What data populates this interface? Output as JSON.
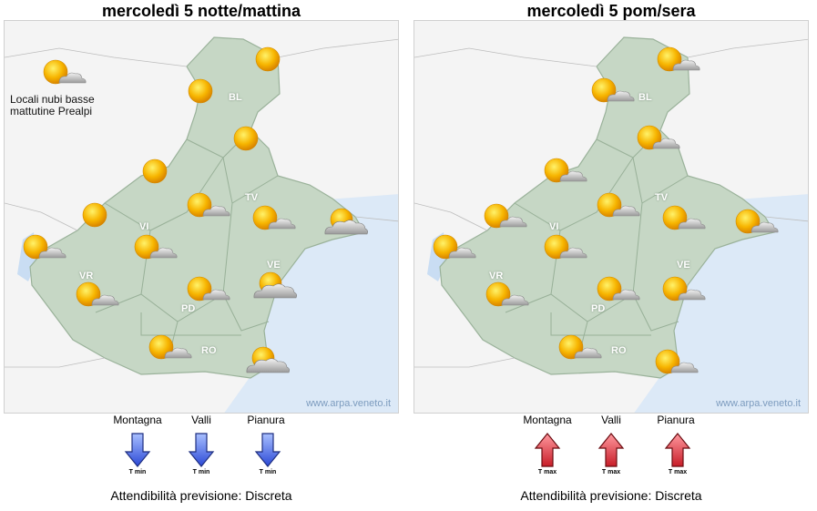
{
  "panels": [
    {
      "title": "mercoledì  5 notte/mattina",
      "note": [
        "Locali nubi basse",
        "mattutine Prealpi"
      ],
      "credit": "www.arpa.veneto.it",
      "provinces": [
        "BL",
        "TV",
        "VI",
        "VR",
        "VE",
        "PD",
        "RO"
      ],
      "icons": [
        "sun-icon",
        "sun-icon",
        "sun-icon",
        "sun-icon",
        "sun-icon",
        "partly-cloudy-icon",
        "partly-cloudy-icon",
        "partly-cloudy-icon",
        "partly-cloudy-icon",
        "partly-cloudy-icon",
        "partly-cloudy-icon",
        "partly-cloudy-icon",
        "cloudy-sun-icon",
        "cloudy-sun-icon",
        "cloudy-sun-icon",
        "partly-cloudy-icon"
      ],
      "legend": {
        "labels": [
          "Montagna",
          "Valli",
          "Pianura"
        ],
        "arrow_text": "T min",
        "arrow_dir": "down",
        "arrow_color": "#3b5ee0"
      },
      "reliability": "Attendibilità previsione: Discreta"
    },
    {
      "title": "mercoledì  5 pom/sera",
      "note": [],
      "credit": "www.arpa.veneto.it",
      "provinces": [
        "BL",
        "TV",
        "VI",
        "VR",
        "VE",
        "PD",
        "RO"
      ],
      "icons": [
        "partly-cloudy-icon",
        "partly-cloudy-icon",
        "partly-cloudy-icon",
        "partly-cloudy-icon",
        "partly-cloudy-icon",
        "partly-cloudy-icon",
        "partly-cloudy-icon",
        "partly-cloudy-icon",
        "partly-cloudy-icon",
        "partly-cloudy-icon",
        "partly-cloudy-icon",
        "partly-cloudy-icon",
        "partly-cloudy-icon",
        "partly-cloudy-icon"
      ],
      "legend": {
        "labels": [
          "Montagna",
          "Valli",
          "Pianura"
        ],
        "arrow_text": "T max",
        "arrow_dir": "up",
        "arrow_color": "#d8242f"
      },
      "reliability": "Attendibilità previsione: Discreta"
    }
  ]
}
